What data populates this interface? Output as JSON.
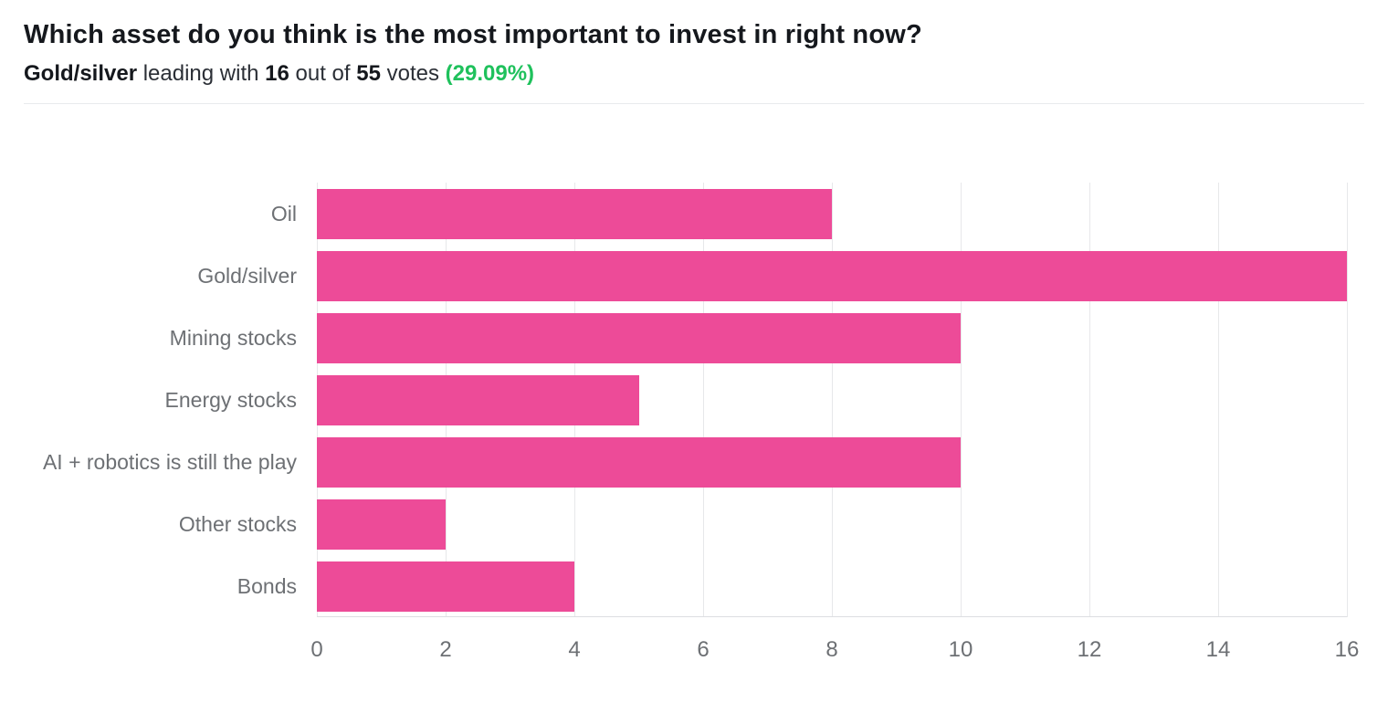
{
  "header": {
    "title": "Which asset do you think is the most important to invest in right now?",
    "subtitle": {
      "leader": "Gold/silver",
      "mid1": " leading with ",
      "votes": "16",
      "mid2": " out of ",
      "total": "55",
      "mid3": " votes ",
      "percent": "(29.09%)"
    }
  },
  "colors": {
    "bar": "#ed4b98",
    "percent_green": "#1fc15c",
    "grid": "#e7e8ea",
    "axis_text": "#6d7074"
  },
  "chart_data": {
    "type": "bar",
    "orientation": "horizontal",
    "title": "Which asset do you think is the most important to invest in right now?",
    "categories": [
      "Oil",
      "Gold/silver",
      "Mining stocks",
      "Energy stocks",
      "AI + robotics is still the play",
      "Other stocks",
      "Bonds"
    ],
    "values": [
      8,
      16,
      10,
      5,
      10,
      2,
      4
    ],
    "total_votes": 55,
    "leader": "Gold/silver",
    "leader_votes": 16,
    "leader_percent": "29.09%",
    "xlabel": "",
    "ylabel": "",
    "xlim": [
      0,
      16
    ],
    "xticks": [
      0,
      2,
      4,
      6,
      8,
      10,
      12,
      14,
      16
    ],
    "grid": true,
    "legend": false,
    "bar_color": "#ed4b98"
  }
}
